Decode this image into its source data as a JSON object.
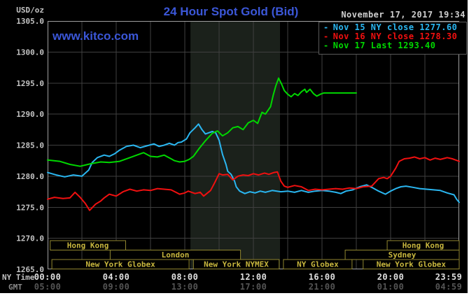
{
  "header": {
    "watermark": "www.kitco.com",
    "datetime": "November 17, 2017 19:34"
  },
  "colors": {
    "brand_blue": "#3b57d8",
    "datetime_text": "#cfcfcf",
    "background": "#000000",
    "margin_white": "#ffffff"
  },
  "legend": {
    "items": [
      {
        "marker": "-",
        "label": "Nov 15 NY close 1277.60",
        "color": "#2ab6f0"
      },
      {
        "marker": "-",
        "label": "Nov 16 NY close 1278.30",
        "color": "#f01010"
      },
      {
        "marker": "-",
        "label": "Nov 17 Last 1293.40",
        "color": "#00d800"
      }
    ]
  },
  "chart_data": {
    "type": "line",
    "title": "24 Hour Spot Gold (Bid)",
    "ylabel": "USD/oz",
    "xlabel_ny": "NY Time",
    "xlabel_gmt": "GMT",
    "ylim": [
      1265,
      1305
    ],
    "y_ticks": [
      1305,
      1300,
      1295,
      1290,
      1285,
      1280,
      1275,
      1270,
      1265
    ],
    "x_tick_hours": [
      0,
      4,
      8,
      12,
      16,
      20,
      23.983
    ],
    "x_ticks_ny": [
      "00:00",
      "04:00",
      "08:00",
      "12:00",
      "16:00",
      "20:00",
      "23:59"
    ],
    "x_ticks_gmt": [
      "05:00",
      "09:00",
      "13:00",
      "17:00",
      "21:00",
      "01:00",
      "04:59"
    ],
    "grid_interval_hours": 2,
    "grid": true,
    "legend_position": "top-right",
    "shaded_band_hours": [
      8.33,
      13.55
    ],
    "colors": {
      "grid": "#3f3f3f",
      "frame": "#a0a0a0",
      "band": "#1b211b",
      "legend_box_border": "#5a5a5a",
      "session_border": "#8f852f",
      "session_text": "#c8b73e",
      "y_axis_text": "#c4c4c4",
      "ny_text": "#e0e0e0",
      "gmt_text": "#555555",
      "ny_row_label": "#c0c0c0",
      "gmt_row_label": "#8a8a8a"
    },
    "sessions": [
      {
        "label": "Hong Kong",
        "row": 0,
        "start": 0.15,
        "end": 4.55
      },
      {
        "label": "Hong Kong",
        "row": 0,
        "start": 19.8,
        "end": 24
      },
      {
        "label": "London",
        "row": 1,
        "start": 3.65,
        "end": 11.25
      },
      {
        "label": "Sydney",
        "row": 1,
        "start": 17.35,
        "end": 24
      },
      {
        "label": "New York Globex",
        "row": 2,
        "start": 0.25,
        "end": 8.25
      },
      {
        "label": "New York NYMEX",
        "row": 2,
        "start": 8.5,
        "end": 13.5
      },
      {
        "label": "NY Globex",
        "row": 2,
        "start": 13.75,
        "end": 17.75
      },
      {
        "label": "New York Globex",
        "row": 2,
        "start": 18.4,
        "end": 24
      }
    ],
    "series": [
      {
        "name": "Nov 15 NY close",
        "close": 1277.6,
        "color": "#2ab6f0",
        "points": [
          [
            0,
            1280.6
          ],
          [
            0.5,
            1280.2
          ],
          [
            1,
            1279.9
          ],
          [
            1.5,
            1280.2
          ],
          [
            2,
            1280
          ],
          [
            2.4,
            1281
          ],
          [
            2.6,
            1282.2
          ],
          [
            2.9,
            1283
          ],
          [
            3.3,
            1283.4
          ],
          [
            3.6,
            1283.2
          ],
          [
            3.9,
            1283.6
          ],
          [
            4.2,
            1284.2
          ],
          [
            4.6,
            1284.8
          ],
          [
            5,
            1285
          ],
          [
            5.4,
            1284.6
          ],
          [
            5.8,
            1284.9
          ],
          [
            6.2,
            1285.2
          ],
          [
            6.5,
            1284.8
          ],
          [
            6.8,
            1285
          ],
          [
            7.1,
            1285.3
          ],
          [
            7.4,
            1285
          ],
          [
            7.6,
            1285.4
          ],
          [
            7.8,
            1285.5
          ],
          [
            8.1,
            1286
          ],
          [
            8.3,
            1287
          ],
          [
            8.6,
            1287.8
          ],
          [
            8.8,
            1288.4
          ],
          [
            9,
            1287.5
          ],
          [
            9.2,
            1286.8
          ],
          [
            9.4,
            1287
          ],
          [
            9.6,
            1287.2
          ],
          [
            9.8,
            1287
          ],
          [
            10,
            1285.8
          ],
          [
            10.2,
            1283.5
          ],
          [
            10.4,
            1281.9
          ],
          [
            10.5,
            1280.8
          ],
          [
            10.7,
            1280.3
          ],
          [
            10.9,
            1279.2
          ],
          [
            11,
            1278.3
          ],
          [
            11.2,
            1277.6
          ],
          [
            11.5,
            1277.2
          ],
          [
            11.8,
            1277.5
          ],
          [
            12.1,
            1277.3
          ],
          [
            12.4,
            1277.6
          ],
          [
            12.7,
            1277.4
          ],
          [
            13.1,
            1277.7
          ],
          [
            13.6,
            1277.5
          ],
          [
            14,
            1277.6
          ],
          [
            14.4,
            1277.4
          ],
          [
            14.8,
            1277.7
          ],
          [
            15.2,
            1277.4
          ],
          [
            15.6,
            1277.6
          ],
          [
            16,
            1277.7
          ],
          [
            16.4,
            1277.6
          ],
          [
            16.8,
            1277.4
          ],
          [
            17.1,
            1277.2
          ],
          [
            17.4,
            1277.6
          ],
          [
            17.8,
            1277.8
          ],
          [
            18.2,
            1278.3
          ],
          [
            18.6,
            1278.6
          ],
          [
            18.9,
            1278.2
          ],
          [
            19.3,
            1277.6
          ],
          [
            19.7,
            1277.1
          ],
          [
            20,
            1277.6
          ],
          [
            20.3,
            1278
          ],
          [
            20.6,
            1278.3
          ],
          [
            20.9,
            1278.4
          ],
          [
            21.3,
            1278.2
          ],
          [
            21.7,
            1278
          ],
          [
            22.1,
            1277.9
          ],
          [
            22.5,
            1277.8
          ],
          [
            22.9,
            1277.7
          ],
          [
            23.3,
            1277.3
          ],
          [
            23.7,
            1277
          ],
          [
            23.85,
            1276.3
          ],
          [
            24,
            1275.8
          ]
        ]
      },
      {
        "name": "Nov 16 NY close",
        "close": 1278.3,
        "color": "#f01010",
        "points": [
          [
            0,
            1276.3
          ],
          [
            0.4,
            1276.6
          ],
          [
            0.9,
            1276.4
          ],
          [
            1.3,
            1276.5
          ],
          [
            1.6,
            1277.4
          ],
          [
            1.9,
            1276.6
          ],
          [
            2.2,
            1275.6
          ],
          [
            2.45,
            1274.5
          ],
          [
            2.8,
            1275.5
          ],
          [
            3.1,
            1276
          ],
          [
            3.3,
            1276.5
          ],
          [
            3.6,
            1277.1
          ],
          [
            4,
            1276.8
          ],
          [
            4.4,
            1277.5
          ],
          [
            4.8,
            1277.9
          ],
          [
            5.2,
            1277.6
          ],
          [
            5.6,
            1277.8
          ],
          [
            6,
            1277.7
          ],
          [
            6.4,
            1278
          ],
          [
            6.8,
            1277.9
          ],
          [
            7.2,
            1277.8
          ],
          [
            7.7,
            1277.1
          ],
          [
            8,
            1277.3
          ],
          [
            8.2,
            1277.6
          ],
          [
            8.6,
            1277.2
          ],
          [
            8.9,
            1277.4
          ],
          [
            9.1,
            1276.8
          ],
          [
            9.5,
            1277.7
          ],
          [
            9.75,
            1279
          ],
          [
            10,
            1280.4
          ],
          [
            10.2,
            1280.2
          ],
          [
            10.5,
            1280.3
          ],
          [
            10.8,
            1279.4
          ],
          [
            11.1,
            1280
          ],
          [
            11.4,
            1280.2
          ],
          [
            11.7,
            1280.1
          ],
          [
            12,
            1280.4
          ],
          [
            12.3,
            1280.2
          ],
          [
            12.65,
            1280.5
          ],
          [
            12.9,
            1280.3
          ],
          [
            13.2,
            1280.6
          ],
          [
            13.4,
            1280.7
          ],
          [
            13.6,
            1279.2
          ],
          [
            13.8,
            1278.4
          ],
          [
            14,
            1278.2
          ],
          [
            14.4,
            1278.5
          ],
          [
            14.8,
            1278.3
          ],
          [
            15.2,
            1277.7
          ],
          [
            15.6,
            1277.9
          ],
          [
            16,
            1277.8
          ],
          [
            16.4,
            1277.9
          ],
          [
            16.8,
            1278
          ],
          [
            17.2,
            1277.9
          ],
          [
            17.6,
            1278.1
          ],
          [
            18,
            1278
          ],
          [
            18.4,
            1278.3
          ],
          [
            18.9,
            1278.4
          ],
          [
            19.3,
            1279.6
          ],
          [
            19.6,
            1279.8
          ],
          [
            19.8,
            1279.6
          ],
          [
            20,
            1280
          ],
          [
            20.3,
            1281.3
          ],
          [
            20.5,
            1282.4
          ],
          [
            20.8,
            1282.8
          ],
          [
            21.1,
            1282.9
          ],
          [
            21.4,
            1283.1
          ],
          [
            21.7,
            1282.8
          ],
          [
            22,
            1283
          ],
          [
            22.3,
            1282.6
          ],
          [
            22.6,
            1282.9
          ],
          [
            22.9,
            1282.7
          ],
          [
            23.3,
            1283
          ],
          [
            23.6,
            1282.8
          ],
          [
            23.8,
            1282.6
          ],
          [
            24,
            1282.4
          ]
        ]
      },
      {
        "name": "Nov 17 Last",
        "last": 1293.4,
        "color": "#00d800",
        "points": [
          [
            0,
            1282.6
          ],
          [
            0.7,
            1282.4
          ],
          [
            1.3,
            1281.9
          ],
          [
            1.9,
            1281.6
          ],
          [
            2.5,
            1282
          ],
          [
            3.1,
            1282.3
          ],
          [
            3.6,
            1282.2
          ],
          [
            4.2,
            1282.4
          ],
          [
            4.8,
            1283
          ],
          [
            5.4,
            1283.6
          ],
          [
            5.6,
            1283.8
          ],
          [
            6,
            1283.2
          ],
          [
            6.4,
            1283.1
          ],
          [
            6.8,
            1283.4
          ],
          [
            7.2,
            1282.8
          ],
          [
            7.4,
            1282.5
          ],
          [
            7.7,
            1282.3
          ],
          [
            8,
            1282.4
          ],
          [
            8.25,
            1282.7
          ],
          [
            8.5,
            1283.2
          ],
          [
            8.85,
            1284.5
          ],
          [
            9.2,
            1285.7
          ],
          [
            9.6,
            1286.9
          ],
          [
            9.9,
            1287.3
          ],
          [
            10.2,
            1286.5
          ],
          [
            10.5,
            1287
          ],
          [
            10.8,
            1287.8
          ],
          [
            11.1,
            1288
          ],
          [
            11.4,
            1287.5
          ],
          [
            11.7,
            1288.6
          ],
          [
            12,
            1289
          ],
          [
            12.25,
            1288.5
          ],
          [
            12.5,
            1290.3
          ],
          [
            12.7,
            1290
          ],
          [
            13,
            1291.2
          ],
          [
            13.15,
            1293
          ],
          [
            13.3,
            1294.5
          ],
          [
            13.47,
            1295.8
          ],
          [
            13.65,
            1294.8
          ],
          [
            13.8,
            1293.8
          ],
          [
            14,
            1293.2
          ],
          [
            14.2,
            1292.8
          ],
          [
            14.4,
            1293.3
          ],
          [
            14.6,
            1293
          ],
          [
            14.8,
            1293.6
          ],
          [
            15,
            1294
          ],
          [
            15.1,
            1293.5
          ],
          [
            15.3,
            1294
          ],
          [
            15.5,
            1293.3
          ],
          [
            15.7,
            1292.9
          ],
          [
            15.9,
            1293.2
          ],
          [
            16.1,
            1293.4
          ],
          [
            18,
            1293.4
          ]
        ]
      }
    ]
  }
}
